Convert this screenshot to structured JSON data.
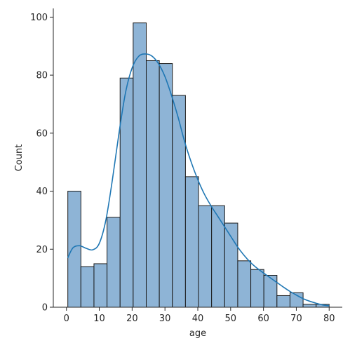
{
  "chart_data": {
    "type": "bar",
    "subtype": "histogram-with-kde",
    "xlabel": "age",
    "ylabel": "Count",
    "xlim": [
      -4,
      84
    ],
    "ylim": [
      0,
      103
    ],
    "xticks": [
      0,
      10,
      20,
      30,
      40,
      50,
      60,
      70,
      80
    ],
    "yticks": [
      0,
      20,
      40,
      60,
      80,
      100
    ],
    "bin_edges": [
      0.42,
      4.4,
      8.38,
      12.36,
      16.34,
      20.32,
      24.3,
      28.28,
      32.26,
      36.24,
      40.22,
      44.2,
      48.18,
      52.16,
      56.14,
      60.12,
      64.1,
      68.08,
      72.06,
      76.04,
      80.0
    ],
    "values": [
      40,
      14,
      15,
      31,
      79,
      98,
      85,
      84,
      73,
      45,
      35,
      35,
      29,
      16,
      13,
      11,
      4,
      5,
      1,
      1
    ],
    "kde": {
      "x": [
        0.4,
        2,
        4,
        6,
        8,
        10,
        12,
        14,
        16,
        18,
        20,
        22,
        24,
        26,
        28,
        30,
        32,
        34,
        36,
        38,
        40,
        42,
        44,
        46,
        48,
        50,
        52,
        54,
        56,
        58,
        60,
        62,
        64,
        66,
        68,
        70,
        72,
        74,
        76,
        78,
        80
      ],
      "y": [
        17,
        20.5,
        21.2,
        20.3,
        19.8,
        22,
        30,
        44,
        60,
        74,
        82.5,
        86.5,
        87.3,
        86.6,
        84,
        79.5,
        73,
        65.5,
        57,
        50,
        44,
        39,
        35,
        31.5,
        28,
        24.5,
        21,
        18,
        15.5,
        13.5,
        11.8,
        10.2,
        8.6,
        7,
        5.5,
        4.2,
        3,
        2.1,
        1.4,
        0.8,
        0.5
      ]
    },
    "colors": {
      "bar_fill": "#8eb4d6",
      "bar_edge": "#1a1a1a",
      "kde_line": "#1f77b4"
    },
    "grid": false,
    "spines": [
      "left",
      "bottom"
    ]
  }
}
